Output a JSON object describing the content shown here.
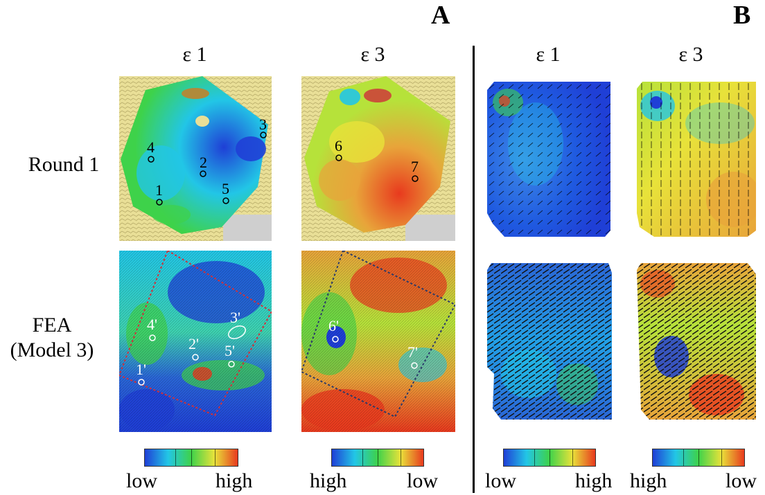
{
  "panels": {
    "a": "A",
    "b": "B"
  },
  "columns": {
    "e1": "ε 1",
    "e3": "ε 3"
  },
  "rows": {
    "round1": "Round 1",
    "fea_line1": "FEA",
    "fea_line2": "(Model 3)"
  },
  "points_round1": [
    "1",
    "2",
    "3",
    "4",
    "5",
    "6",
    "7"
  ],
  "points_fea": [
    "1'",
    "2'",
    "3'",
    "4'",
    "5'",
    "6'",
    "7'"
  ],
  "colorbars": {
    "a_e1": {
      "low": "low",
      "high": "high"
    },
    "a_e3": {
      "left": "high",
      "right": "low"
    },
    "b_e1": {
      "low": "low",
      "high": "high"
    },
    "b_e3": {
      "left": "high",
      "right": "low"
    }
  },
  "colors": {
    "scale_blue": "#1f3fd6",
    "scale_cyan": "#22c6e6",
    "scale_green": "#3ed24a",
    "scale_yellow": "#e8e23a",
    "scale_red": "#e83a1e",
    "bone": "#e9df97",
    "outline_red": "#d0303a",
    "outline_blue": "#2a3a6a"
  }
}
